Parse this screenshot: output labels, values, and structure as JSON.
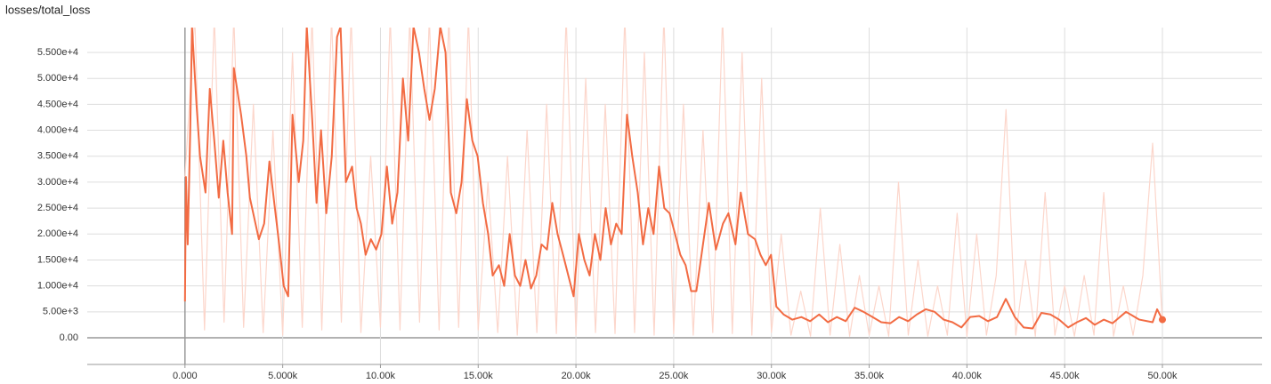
{
  "chart_data": {
    "type": "line",
    "title": "losses/total_loss",
    "xlim": [
      -5000,
      55100
    ],
    "ylim": [
      -5140,
      59800
    ],
    "grid": true,
    "xticks": [
      {
        "value": 0,
        "label": "0.000"
      },
      {
        "value": 5000,
        "label": "5.000k"
      },
      {
        "value": 10000,
        "label": "10.00k"
      },
      {
        "value": 15000,
        "label": "15.00k"
      },
      {
        "value": 20000,
        "label": "20.00k"
      },
      {
        "value": 25000,
        "label": "25.00k"
      },
      {
        "value": 30000,
        "label": "30.00k"
      },
      {
        "value": 35000,
        "label": "35.00k"
      },
      {
        "value": 40000,
        "label": "40.00k"
      },
      {
        "value": 45000,
        "label": "45.00k"
      },
      {
        "value": 50000,
        "label": "50.00k"
      }
    ],
    "yticks": [
      {
        "value": 0,
        "label": "0.00"
      },
      {
        "value": 5000,
        "label": "5.00e+3"
      },
      {
        "value": 10000,
        "label": "1.000e+4"
      },
      {
        "value": 15000,
        "label": "1.500e+4"
      },
      {
        "value": 20000,
        "label": "2.000e+4"
      },
      {
        "value": 25000,
        "label": "2.500e+4"
      },
      {
        "value": 30000,
        "label": "3.000e+4"
      },
      {
        "value": 35000,
        "label": "3.500e+4"
      },
      {
        "value": 40000,
        "label": "4.000e+4"
      },
      {
        "value": 45000,
        "label": "4.500e+4"
      },
      {
        "value": 50000,
        "label": "5.000e+4"
      },
      {
        "value": 55000,
        "label": "5.500e+4"
      }
    ],
    "series": [
      {
        "color": "#fcd6cb",
        "x": [
          0,
          500,
          1000,
          1500,
          2000,
          2500,
          3000,
          3500,
          4000,
          4500,
          5000,
          5500,
          6000,
          6500,
          7000,
          7500,
          8000,
          8500,
          9000,
          9500,
          10000,
          10500,
          11000,
          11500,
          12000,
          12500,
          13000,
          13500,
          14000,
          14500,
          15000,
          15500,
          16000,
          16500,
          17000,
          17500,
          18000,
          18500,
          19000,
          19500,
          20000,
          20500,
          21000,
          21500,
          22000,
          22500,
          23000,
          23500,
          24000,
          24500,
          25000,
          25500,
          26000,
          26500,
          27000,
          27500,
          28000,
          28500,
          29000,
          29500,
          30000,
          30500,
          31000,
          31500,
          32000,
          32500,
          33000,
          33500,
          34000,
          34500,
          35000,
          35500,
          36000,
          36500,
          37000,
          37500,
          38000,
          38500,
          39000,
          39500,
          40000,
          40500,
          41000,
          41500,
          42000,
          42500,
          43000,
          43500,
          44000,
          44500,
          45000,
          45500,
          46000,
          46500,
          47000,
          47500,
          48000,
          48500,
          49000,
          49500,
          50000
        ],
        "values": [
          31000,
          62000,
          1500,
          62000,
          3000,
          62000,
          2000,
          45000,
          1000,
          40000,
          500,
          55000,
          2000,
          62000,
          1500,
          62000,
          3000,
          62000,
          1000,
          35000,
          2000,
          62000,
          1500,
          62000,
          3000,
          62000,
          1500,
          62000,
          2000,
          62000,
          1500,
          30000,
          1000,
          35000,
          500,
          40000,
          1000,
          45000,
          800,
          62000,
          500,
          50000,
          1000,
          45000,
          800,
          62000,
          1000,
          55000,
          500,
          62000,
          800,
          45000,
          500,
          40000,
          1000,
          62000,
          800,
          55000,
          500,
          50000,
          1000,
          20000,
          500,
          9000,
          300,
          25000,
          500,
          18000,
          300,
          12000,
          500,
          10000,
          300,
          30000,
          500,
          15000,
          300,
          10000,
          500,
          24000,
          300,
          20000,
          500,
          12000,
          44000,
          500,
          15000,
          300,
          28000,
          500,
          10000,
          300,
          12000,
          500,
          28000,
          300,
          10000,
          500,
          12000,
          37500,
          3000
        ]
      },
      {
        "color": "#f26b43",
        "x": [
          0,
          50,
          140,
          270,
          360,
          590,
          770,
          1050,
          1270,
          1500,
          1730,
          1960,
          2180,
          2410,
          2500,
          2870,
          3140,
          3320,
          3780,
          4050,
          4320,
          4600,
          4820,
          5050,
          5280,
          5500,
          5820,
          6050,
          6230,
          6510,
          6730,
          6960,
          7230,
          7510,
          7780,
          7960,
          8230,
          8550,
          8780,
          9000,
          9240,
          9510,
          9780,
          10050,
          10330,
          10600,
          10870,
          11150,
          11420,
          11690,
          11970,
          12240,
          12510,
          12780,
          13060,
          13330,
          13600,
          13880,
          14150,
          14420,
          14700,
          14970,
          15240,
          15510,
          15740,
          16060,
          16330,
          16610,
          16880,
          17150,
          17420,
          17700,
          17970,
          18240,
          18520,
          18790,
          19060,
          19340,
          19610,
          19880,
          20150,
          20430,
          20700,
          20970,
          21250,
          21520,
          21790,
          22060,
          22340,
          22610,
          22880,
          23160,
          23430,
          23700,
          23970,
          24250,
          24520,
          24790,
          25070,
          25340,
          25610,
          25890,
          26160,
          26800,
          27160,
          27520,
          27800,
          28160,
          28430,
          28800,
          29160,
          29440,
          29710,
          29980,
          30250,
          30620,
          31070,
          31530,
          31980,
          32440,
          32890,
          33350,
          33800,
          34260,
          34710,
          35170,
          35620,
          36080,
          36530,
          36990,
          37440,
          37900,
          38350,
          38810,
          39260,
          39720,
          40170,
          40630,
          41080,
          41540,
          41990,
          42450,
          42900,
          43360,
          43810,
          44270,
          44720,
          45180,
          45630,
          46090,
          46540,
          47000,
          47450,
          48140,
          48820,
          49500,
          49730,
          50000
        ],
        "values": [
          7000,
          31000,
          18000,
          40000,
          60000,
          45000,
          35000,
          28000,
          48000,
          38000,
          27000,
          38000,
          28000,
          20000,
          52000,
          43000,
          35000,
          27000,
          19000,
          22000,
          34000,
          25000,
          18000,
          10000,
          8000,
          43000,
          30000,
          38000,
          60000,
          42000,
          26000,
          40000,
          24000,
          35000,
          58000,
          60000,
          30000,
          33000,
          25000,
          22000,
          16000,
          19000,
          17000,
          20000,
          33000,
          22000,
          28000,
          50000,
          38000,
          60000,
          55000,
          48000,
          42000,
          48000,
          60000,
          55000,
          28000,
          24000,
          30000,
          46000,
          38000,
          35000,
          26000,
          20000,
          12000,
          14000,
          10000,
          20000,
          12000,
          10000,
          15000,
          9500,
          12000,
          18000,
          17000,
          26000,
          20000,
          16000,
          12000,
          8000,
          20000,
          15000,
          12000,
          20000,
          15000,
          25000,
          18000,
          22000,
          20000,
          43000,
          35000,
          28000,
          18000,
          25000,
          20000,
          33000,
          25000,
          24000,
          20000,
          16000,
          14000,
          9000,
          9000,
          26000,
          17000,
          22000,
          24000,
          18000,
          28000,
          20000,
          19000,
          16000,
          14000,
          16000,
          6000,
          4500,
          3500,
          4000,
          3200,
          4500,
          3000,
          4000,
          3200,
          5800,
          5000,
          4000,
          3000,
          2800,
          4000,
          3200,
          4500,
          5500,
          5000,
          3500,
          3000,
          2000,
          4000,
          4200,
          3200,
          4000,
          7500,
          4000,
          2000,
          1800,
          4800,
          4500,
          3500,
          2000,
          3000,
          3800,
          2500,
          3500,
          2800,
          5000,
          3500,
          3000,
          5500,
          3500
        ]
      }
    ]
  }
}
